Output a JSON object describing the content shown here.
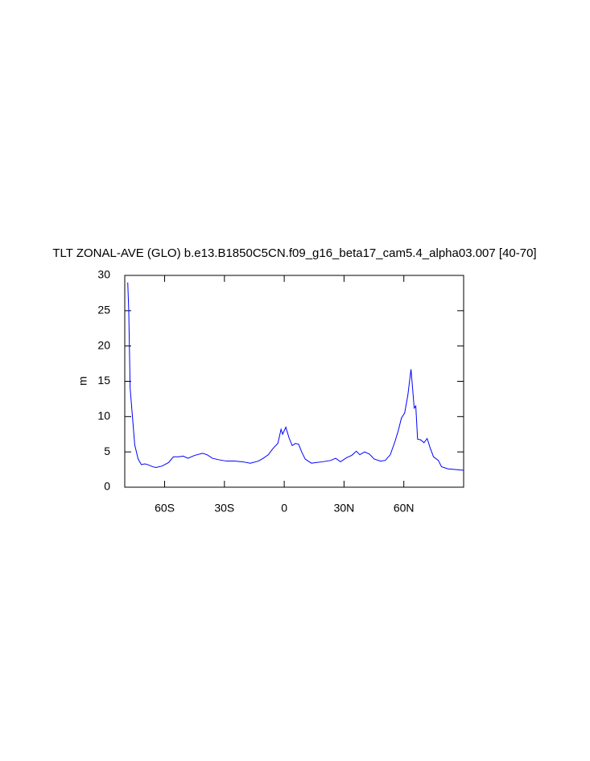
{
  "chart_data": {
    "type": "line",
    "title": "TLT ZONAL-AVE (GLO) b.e13.B1850C5CN.f09_g16_beta17_cam5.4_alpha03.007 [40-70]",
    "y_label": "m",
    "xlim": [
      -80,
      90
    ],
    "ylim": [
      0,
      30
    ],
    "xticks": [
      {
        "value": -60,
        "label": "60S"
      },
      {
        "value": -30,
        "label": "30S"
      },
      0,
      {
        "value": 30,
        "label": "30N"
      },
      {
        "value": 60,
        "label": "60N"
      }
    ],
    "yticks": [
      0,
      5,
      10,
      15,
      20,
      25,
      30
    ],
    "x": [
      -78.5,
      -78,
      -77.3,
      -76,
      -75,
      -73.3,
      -71.7,
      -70,
      -68.5,
      -66,
      -64.4,
      -61.2,
      -58,
      -55.6,
      -53,
      -50.7,
      -48.3,
      -45,
      -41,
      -38.7,
      -36,
      -33,
      -29,
      -25,
      -21,
      -17,
      -13,
      -10.5,
      -8,
      -5.6,
      -3.2,
      -1.6,
      -0.8,
      0.8,
      2.4,
      4,
      5.6,
      7.2,
      8.9,
      10.5,
      12,
      13.7,
      16,
      19.3,
      23.4,
      25.8,
      28.2,
      31.4,
      33.8,
      36.2,
      37.9,
      40.3,
      42.7,
      45.1,
      48.3,
      50.7,
      53.2,
      55.6,
      57.2,
      58.8,
      60.4,
      62,
      63.6,
      64.4,
      65.2,
      66,
      66.9,
      68.5,
      70.1,
      71.7,
      73.3,
      74.9,
      77.3,
      78.9,
      82.2,
      86.2,
      90
    ],
    "series": [
      {
        "color": "#0000ff",
        "values": [
          29,
          25,
          14,
          9.5,
          6,
          4,
          3.2,
          3.3,
          3.2,
          2.9,
          2.8,
          3.0,
          3.5,
          4.3,
          4.3,
          4.4,
          4.1,
          4.5,
          4.8,
          4.6,
          4.1,
          3.9,
          3.7,
          3.7,
          3.6,
          3.4,
          3.7,
          4.1,
          4.6,
          5.5,
          6.2,
          8.2,
          7.5,
          8.5,
          7,
          5.9,
          6.2,
          6.1,
          4.9,
          4.0,
          3.7,
          3.4,
          3.5,
          3.6,
          3.8,
          4.1,
          3.6,
          4.2,
          4.5,
          5.1,
          4.6,
          5.0,
          4.7,
          4.0,
          3.7,
          3.8,
          4.6,
          6.5,
          8.0,
          9.8,
          10.5,
          13,
          16.7,
          14,
          11.2,
          11.5,
          6.8,
          6.7,
          6.3,
          6.9,
          5.5,
          4.3,
          3.8,
          2.9,
          2.6,
          2.5,
          2.4
        ]
      }
    ]
  }
}
